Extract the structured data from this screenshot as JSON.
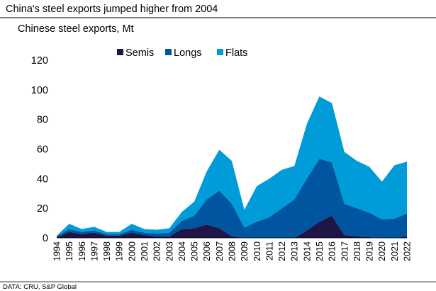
{
  "chart_data": {
    "type": "area",
    "stacked": true,
    "title": "China's steel exports jumped higher from 2004",
    "subtitle": "Chinese steel exports, Mt",
    "source": "DATA: CRU, S&P Global",
    "xlabel": "",
    "ylabel": "",
    "ylim": [
      0,
      120
    ],
    "yticks": [
      0,
      20,
      40,
      60,
      80,
      100,
      120
    ],
    "grid": false,
    "legend_position": "top",
    "categories": [
      "1994",
      "1995",
      "1996",
      "1997",
      "1998",
      "1999",
      "2000",
      "2001",
      "2002",
      "2003",
      "2004",
      "2005",
      "2006",
      "2007",
      "2008",
      "2009",
      "2010",
      "2011",
      "2012",
      "2013",
      "2014",
      "2015",
      "2016",
      "2017",
      "2018",
      "2019",
      "2020",
      "2021",
      "2022"
    ],
    "series": [
      {
        "name": "Semis",
        "color": "#1f1646",
        "values": [
          0.5,
          4,
          2.5,
          3.5,
          1.5,
          1.5,
          3.5,
          2,
          1,
          1,
          6,
          6.5,
          9,
          6.5,
          1,
          0,
          0,
          0,
          0,
          0,
          5,
          11,
          15,
          2,
          1,
          0.5,
          0,
          0,
          1
        ]
      },
      {
        "name": "Longs",
        "color": "#0055a0",
        "values": [
          0.5,
          2,
          1.5,
          1.5,
          1,
          1,
          2,
          1.5,
          2,
          2.5,
          5.5,
          8.5,
          17,
          25.5,
          22,
          7,
          11,
          14,
          20,
          26,
          35,
          42.5,
          36,
          21,
          19,
          16.5,
          12.5,
          13,
          15.5
        ]
      },
      {
        "name": "Flats",
        "color": "#009bd9",
        "values": [
          0.5,
          3.5,
          2,
          2.5,
          1.5,
          1.5,
          4,
          2.5,
          2.5,
          3,
          6,
          9.5,
          19,
          27.5,
          29,
          12,
          24,
          26,
          26,
          22.5,
          37,
          42,
          40,
          35,
          32,
          31,
          25.5,
          36,
          35
        ]
      }
    ]
  }
}
